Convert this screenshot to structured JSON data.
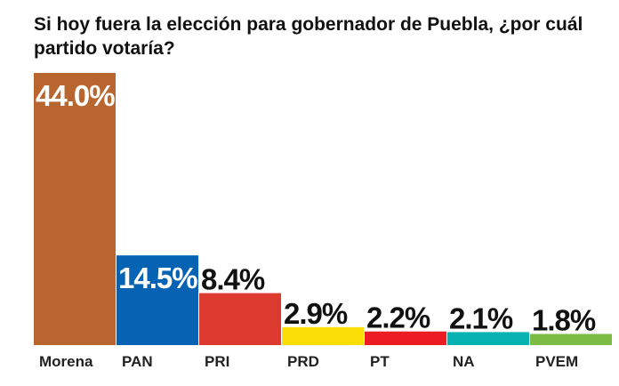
{
  "chart_data": {
    "type": "bar",
    "title": "Si hoy fuera la elección para gobernador de Puebla, ¿por cuál partido votaría?",
    "categories": [
      "Morena",
      "PAN",
      "PRI",
      "PRD",
      "PT",
      "NA",
      "PVEM"
    ],
    "values": [
      44.0,
      14.5,
      8.4,
      2.9,
      2.2,
      2.1,
      1.8
    ],
    "data_labels": [
      "44.0%",
      "14.5%",
      "8.4%",
      "2.9%",
      "2.2%",
      "2.1%",
      "1.8%"
    ],
    "colors": [
      "#b86530",
      "#0663b4",
      "#dc3a2f",
      "#fbde05",
      "#ec1c24",
      "#07b2b1",
      "#7cbb44"
    ],
    "xlabel": "",
    "ylabel": "",
    "ylim": [
      0,
      44
    ],
    "grid": false
  }
}
